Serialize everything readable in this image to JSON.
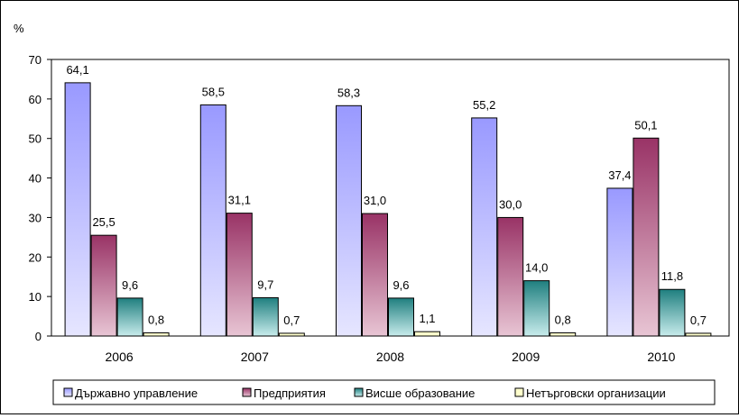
{
  "chart_data": {
    "type": "bar",
    "unit_label": "%",
    "categories": [
      "2006",
      "2007",
      "2008",
      "2009",
      "2010"
    ],
    "series": [
      {
        "name": "Държавно управление",
        "values": [
          64.1,
          58.5,
          58.3,
          55.2,
          37.4
        ],
        "labels": [
          "64,1",
          "58,5",
          "58,3",
          "55,2",
          "37,4"
        ],
        "color_top": "#9999ff",
        "color_bottom": "#e6e6ff"
      },
      {
        "name": "Предприятия",
        "values": [
          25.5,
          31.1,
          31.0,
          30.0,
          50.1
        ],
        "labels": [
          "25,5",
          "31,1",
          "31,0",
          "30,0",
          "50,1"
        ],
        "color_top": "#993366",
        "color_bottom": "#e8c5d4"
      },
      {
        "name": "Висше образование",
        "values": [
          9.6,
          9.7,
          9.6,
          14.0,
          11.8
        ],
        "labels": [
          "9,6",
          "9,7",
          "9,6",
          "14,0",
          "11,8"
        ],
        "color_top": "#1f7f7f",
        "color_bottom": "#c8ecec"
      },
      {
        "name": "Нетърговски организации",
        "values": [
          0.8,
          0.7,
          1.1,
          0.8,
          0.7
        ],
        "labels": [
          "0,8",
          "0,7",
          "1,1",
          "0,8",
          "0,7"
        ],
        "color_top": "#ffffcc",
        "color_bottom": "#ffffcc"
      }
    ],
    "y_ticks": [
      "0",
      "10",
      "20",
      "30",
      "40",
      "50",
      "60",
      "70"
    ],
    "ylim": [
      0,
      70
    ],
    "grid": false,
    "legend_position": "bottom"
  }
}
